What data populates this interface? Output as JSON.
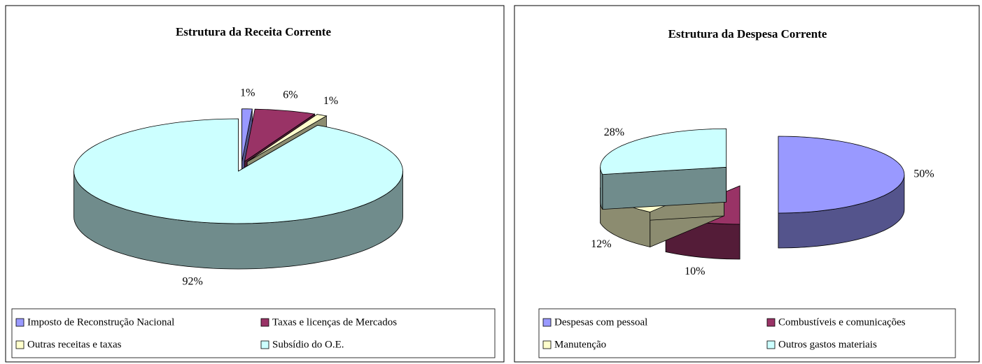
{
  "chart_data": [
    {
      "type": "pie",
      "title": "Estrutura da Receita Corrente",
      "categories": [
        "Imposto de Reconstrução Nacional",
        "Taxas e licenças de Mercados",
        "Outras receitas e taxas",
        "Subsídio do O.E."
      ],
      "values": [
        1,
        6,
        1,
        92
      ],
      "value_labels": [
        "1%",
        "6%",
        "1%",
        "92%"
      ],
      "colors": [
        "#9999ff",
        "#993366",
        "#ffffcc",
        "#ccffff"
      ],
      "legend": "bottom"
    },
    {
      "type": "pie",
      "title": "Estrutura da Despesa Corrente",
      "categories": [
        "Despesas com pessoal",
        "Combustíveis e comunicações",
        "Manutenção",
        "Outros gastos materiais"
      ],
      "values": [
        50,
        10,
        12,
        28
      ],
      "value_labels": [
        "50%",
        "10%",
        "12%",
        "28%"
      ],
      "colors": [
        "#9999ff",
        "#993366",
        "#ffffcc",
        "#ccffff"
      ],
      "legend": "bottom"
    }
  ]
}
